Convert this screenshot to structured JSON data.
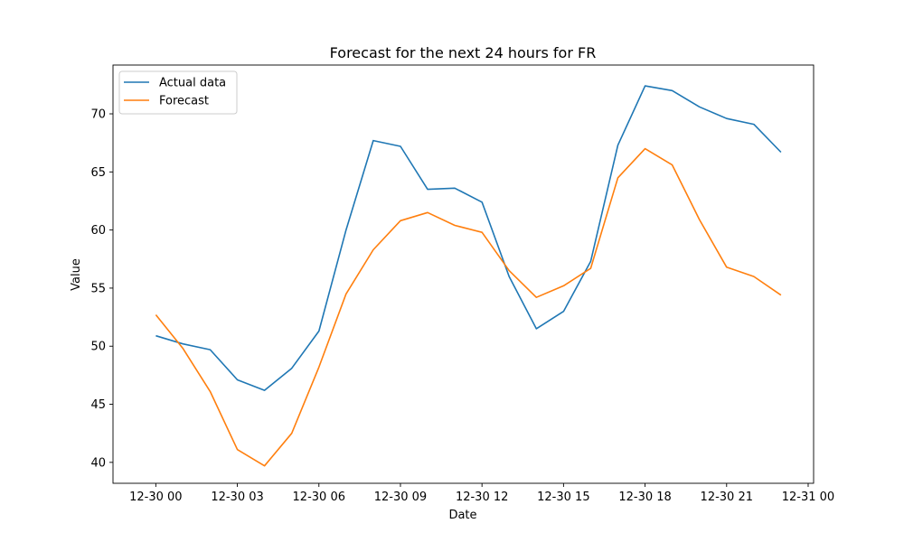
{
  "chart_data": {
    "type": "line",
    "title": "Forecast for the next 24 hours for FR",
    "xlabel": "Date",
    "ylabel": "Value",
    "x_tick_labels": [
      "12-30 00",
      "12-30 03",
      "12-30 06",
      "12-30 09",
      "12-30 12",
      "12-30 15",
      "12-30 18",
      "12-30 21",
      "12-31 00"
    ],
    "y_ticks": [
      40,
      45,
      50,
      55,
      60,
      65,
      70
    ],
    "ylim": [
      38.2,
      74.2
    ],
    "x_hours": [
      0,
      1,
      2,
      3,
      4,
      5,
      6,
      7,
      8,
      9,
      10,
      11,
      12,
      13,
      14,
      15,
      16,
      17,
      18,
      19,
      20,
      21,
      22,
      23
    ],
    "legend_position": "upper left",
    "grid": false,
    "series": [
      {
        "name": "Actual data",
        "color": "#1f77b4",
        "values": [
          50.9,
          50.2,
          49.7,
          47.1,
          46.2,
          48.1,
          51.3,
          60.0,
          67.7,
          67.2,
          63.5,
          63.6,
          62.4,
          56.0,
          51.5,
          53.0,
          57.3,
          67.3,
          72.4,
          72.0,
          70.6,
          69.6,
          69.1,
          66.7
        ]
      },
      {
        "name": "Forecast",
        "color": "#ff7f0e",
        "values": [
          52.7,
          49.8,
          46.1,
          41.1,
          39.7,
          42.5,
          48.2,
          54.5,
          58.3,
          60.8,
          61.5,
          60.4,
          59.8,
          56.5,
          54.2,
          55.2,
          56.7,
          64.5,
          67.0,
          65.6,
          60.9,
          56.8,
          56.0,
          54.4
        ]
      }
    ]
  }
}
